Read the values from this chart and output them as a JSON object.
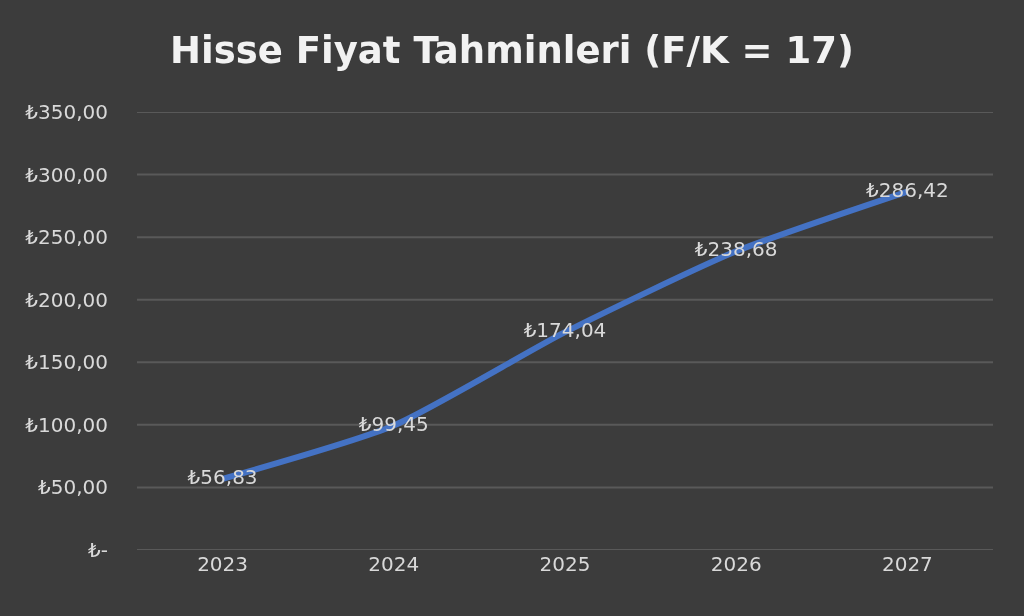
{
  "chart_data": {
    "type": "line",
    "title": "Hisse Fiyat Tahminleri (F/K = 17)",
    "categories": [
      "2023",
      "2024",
      "2025",
      "2026",
      "2027"
    ],
    "series": [
      {
        "color": "#4472c4",
        "values": [
          56.83,
          99.45,
          174.04,
          238.68,
          286.42
        ],
        "value_labels": [
          "₺56,83",
          "₺99,45",
          "₺174,04",
          "₺238,68",
          "₺286,42"
        ]
      }
    ],
    "ylim": [
      0,
      350
    ],
    "yticks": [
      {
        "value": 0,
        "label": "₺-"
      },
      {
        "value": 50,
        "label": "₺50,00"
      },
      {
        "value": 100,
        "label": "₺100,00"
      },
      {
        "value": 150,
        "label": "₺150,00"
      },
      {
        "value": 200,
        "label": "₺200,00"
      },
      {
        "value": 250,
        "label": "₺250,00"
      },
      {
        "value": 300,
        "label": "₺300,00"
      },
      {
        "value": 350,
        "label": "₺350,00"
      }
    ],
    "grid": "y",
    "marker": "none",
    "line_style": "solid"
  }
}
